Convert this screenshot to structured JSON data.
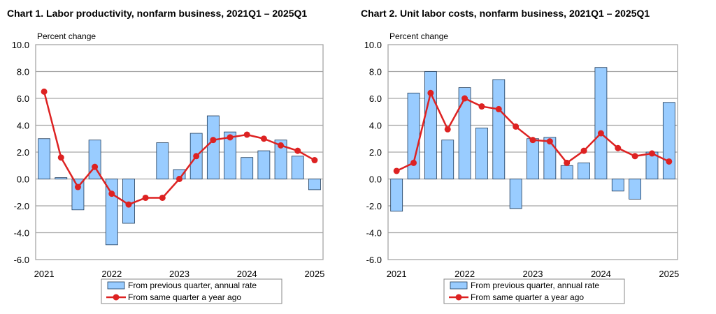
{
  "colors": {
    "bar_fill": "#99ccff",
    "bar_stroke": "#1f3b5a",
    "line": "#dd2222",
    "grid": "#a6a6a6"
  },
  "chart_data": [
    {
      "type": "bar+line",
      "title": "Chart  1. Labor productivity, nonfarm business, 2021Q1 – 2025Q1",
      "ylabel": "Percent change",
      "ylim": [
        -6,
        10
      ],
      "yticks": [
        "10.0",
        "8.0",
        "6.0",
        "4.0",
        "2.0",
        "0.0",
        "-2.0",
        "-4.0",
        "-6.0"
      ],
      "xtick_labels": [
        "2021",
        "2022",
        "2023",
        "2024",
        "2025"
      ],
      "categories": [
        "2021Q1",
        "2021Q2",
        "2021Q3",
        "2021Q4",
        "2022Q1",
        "2022Q2",
        "2022Q3",
        "2022Q4",
        "2023Q1",
        "2023Q2",
        "2023Q3",
        "2023Q4",
        "2024Q1",
        "2024Q2",
        "2024Q3",
        "2024Q4",
        "2025Q1"
      ],
      "grid": true,
      "legend_position": "bottom",
      "series": [
        {
          "name": "From previous quarter, annual rate",
          "type": "bar",
          "values": [
            3.0,
            0.1,
            -2.3,
            2.9,
            -4.9,
            -3.3,
            0.0,
            2.7,
            0.7,
            3.4,
            4.7,
            3.5,
            1.6,
            2.1,
            2.9,
            1.7,
            -0.8
          ]
        },
        {
          "name": "From same quarter a year ago",
          "type": "line",
          "values": [
            6.5,
            1.6,
            -0.6,
            0.9,
            -1.1,
            -1.9,
            -1.4,
            -1.4,
            0.0,
            1.7,
            2.9,
            3.1,
            3.3,
            3.0,
            2.5,
            2.1,
            1.4
          ]
        }
      ]
    },
    {
      "type": "bar+line",
      "title": "Chart  2. Unit labor costs, nonfarm business, 2021Q1 – 2025Q1",
      "ylabel": "Percent change",
      "ylim": [
        -6,
        10
      ],
      "yticks": [
        "10.0",
        "8.0",
        "6.0",
        "4.0",
        "2.0",
        "0.0",
        "-2.0",
        "-4.0",
        "-6.0"
      ],
      "xtick_labels": [
        "2021",
        "2022",
        "2023",
        "2024",
        "2025"
      ],
      "categories": [
        "2021Q1",
        "2021Q2",
        "2021Q3",
        "2021Q4",
        "2022Q1",
        "2022Q2",
        "2022Q3",
        "2022Q4",
        "2023Q1",
        "2023Q2",
        "2023Q3",
        "2023Q4",
        "2024Q1",
        "2024Q2",
        "2024Q3",
        "2024Q4",
        "2025Q1"
      ],
      "grid": true,
      "legend_position": "bottom",
      "series": [
        {
          "name": "From previous quarter, annual rate",
          "type": "bar",
          "values": [
            -2.4,
            6.4,
            8.0,
            2.9,
            6.8,
            3.8,
            7.4,
            -2.2,
            3.0,
            3.1,
            1.0,
            1.2,
            8.3,
            -0.9,
            -1.5,
            2.0,
            5.7
          ]
        },
        {
          "name": "From same quarter a year ago",
          "type": "line",
          "values": [
            0.6,
            1.2,
            6.4,
            3.7,
            6.0,
            5.4,
            5.2,
            3.9,
            2.9,
            2.8,
            1.2,
            2.1,
            3.4,
            2.3,
            1.7,
            1.9,
            1.3
          ]
        }
      ]
    }
  ]
}
